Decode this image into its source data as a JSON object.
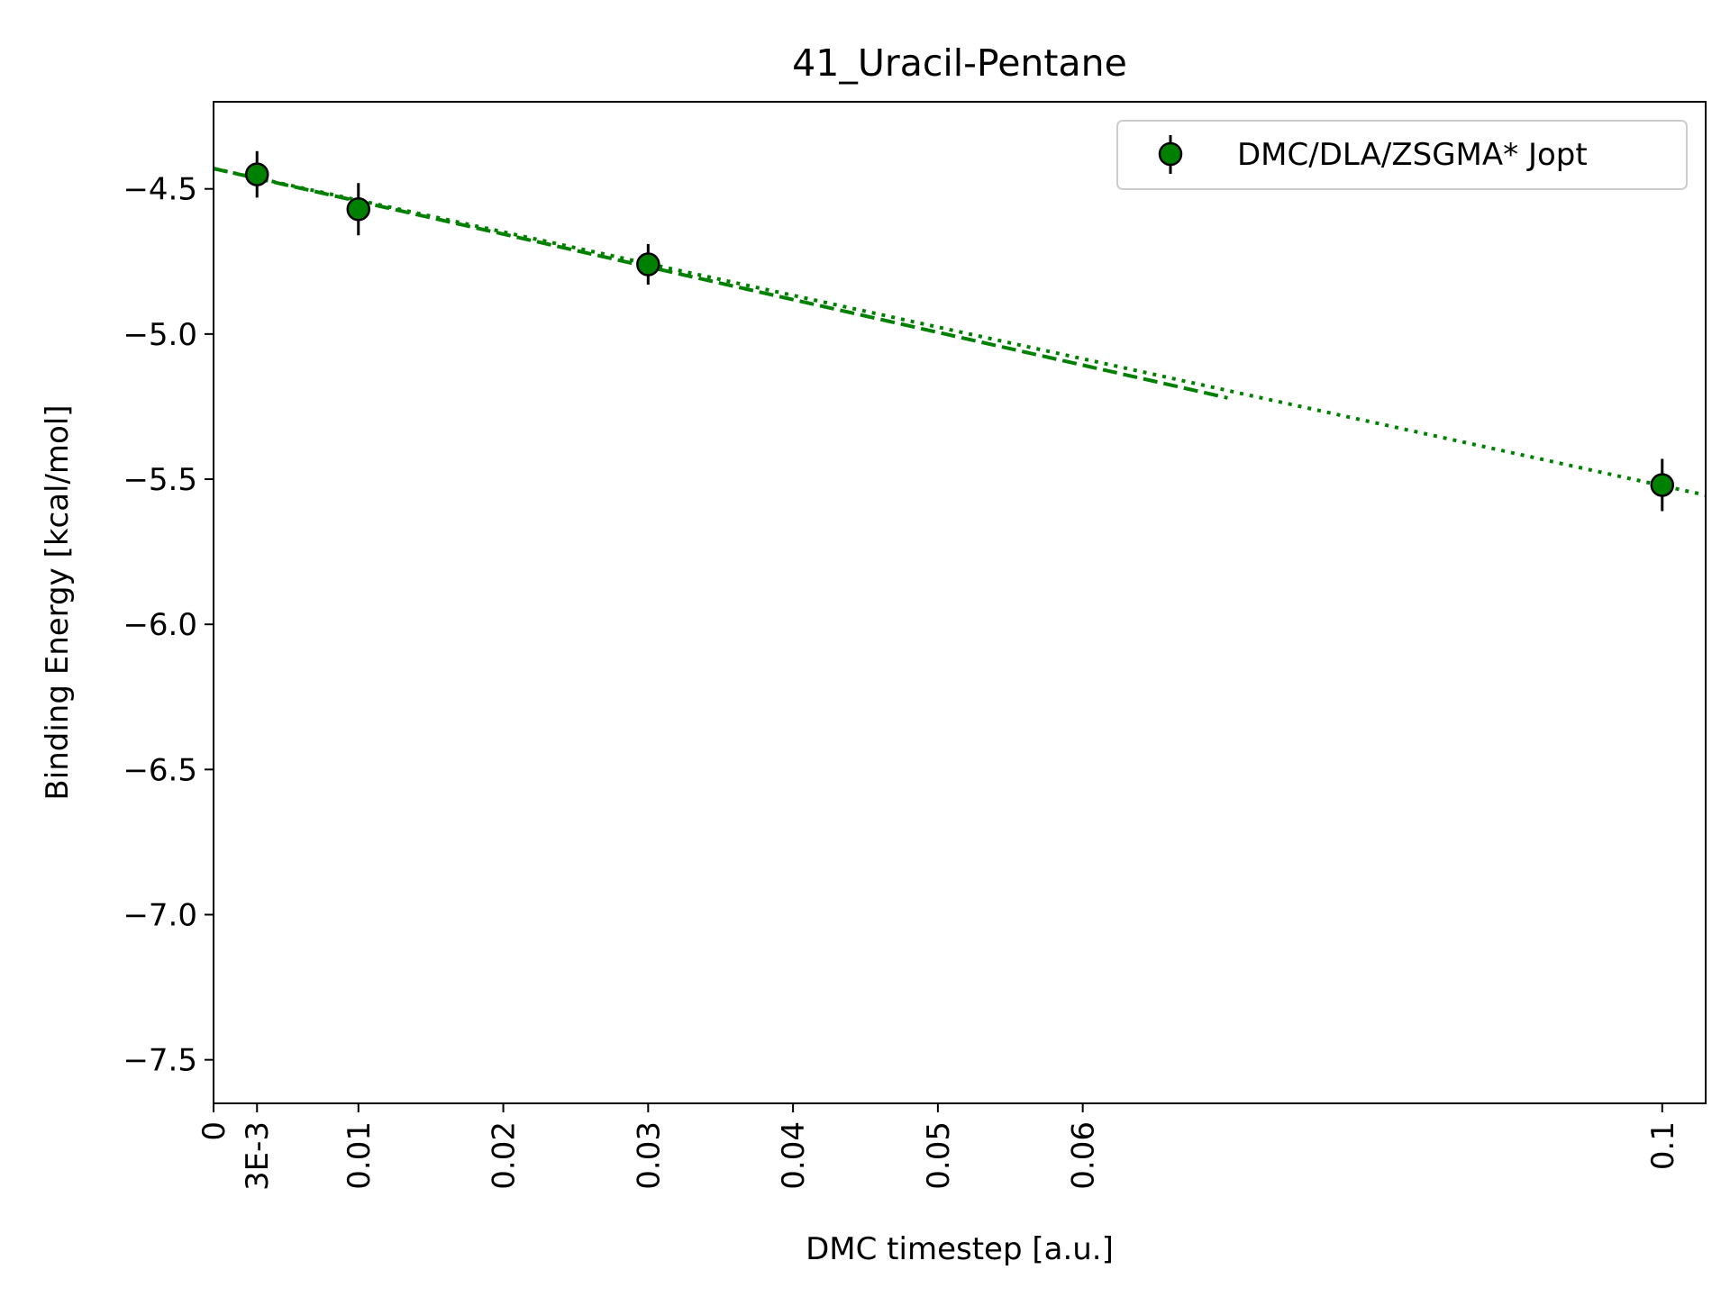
{
  "chart_data": {
    "type": "scatter",
    "title": "41_Uracil-Pentane",
    "xlabel": "DMC timestep [a.u.]",
    "ylabel": "Binding Energy [kcal/mol]",
    "xlim": [
      0,
      0.103
    ],
    "ylim": [
      -7.65,
      -4.2
    ],
    "x_ticks": [
      {
        "value": 0,
        "label": "0"
      },
      {
        "value": 0.003,
        "label": "3E-3"
      },
      {
        "value": 0.01,
        "label": "0.01"
      },
      {
        "value": 0.02,
        "label": "0.02"
      },
      {
        "value": 0.03,
        "label": "0.03"
      },
      {
        "value": 0.04,
        "label": "0.04"
      },
      {
        "value": 0.05,
        "label": "0.05"
      },
      {
        "value": 0.06,
        "label": "0.06"
      },
      {
        "value": 0.1,
        "label": "0.1"
      }
    ],
    "y_ticks": [
      {
        "value": -4.5,
        "label": "−4.5"
      },
      {
        "value": -5.0,
        "label": "−5.0"
      },
      {
        "value": -5.5,
        "label": "−5.5"
      },
      {
        "value": -6.0,
        "label": "−6.0"
      },
      {
        "value": -6.5,
        "label": "−6.5"
      },
      {
        "value": -7.0,
        "label": "−7.0"
      },
      {
        "value": -7.5,
        "label": "−7.5"
      }
    ],
    "grid": false,
    "legend_position": "top-right",
    "series": [
      {
        "name": "DMC/DLA/ZSGMA* Jopt",
        "color": "#008000",
        "marker": "circle",
        "x": [
          0.003,
          0.01,
          0.03,
          0.1
        ],
        "y": [
          -4.45,
          -4.57,
          -4.76,
          -5.52
        ],
        "yerr": [
          0.08,
          0.09,
          0.07,
          0.09
        ]
      }
    ],
    "fit_lines": [
      {
        "style": "dashed",
        "color": "#008000",
        "x": [
          0,
          0.07
        ],
        "y": [
          -4.43,
          -5.22
        ]
      },
      {
        "style": "dotted",
        "color": "#008000",
        "x": [
          0,
          0.103
        ],
        "y": [
          -4.43,
          -5.555
        ]
      }
    ]
  }
}
